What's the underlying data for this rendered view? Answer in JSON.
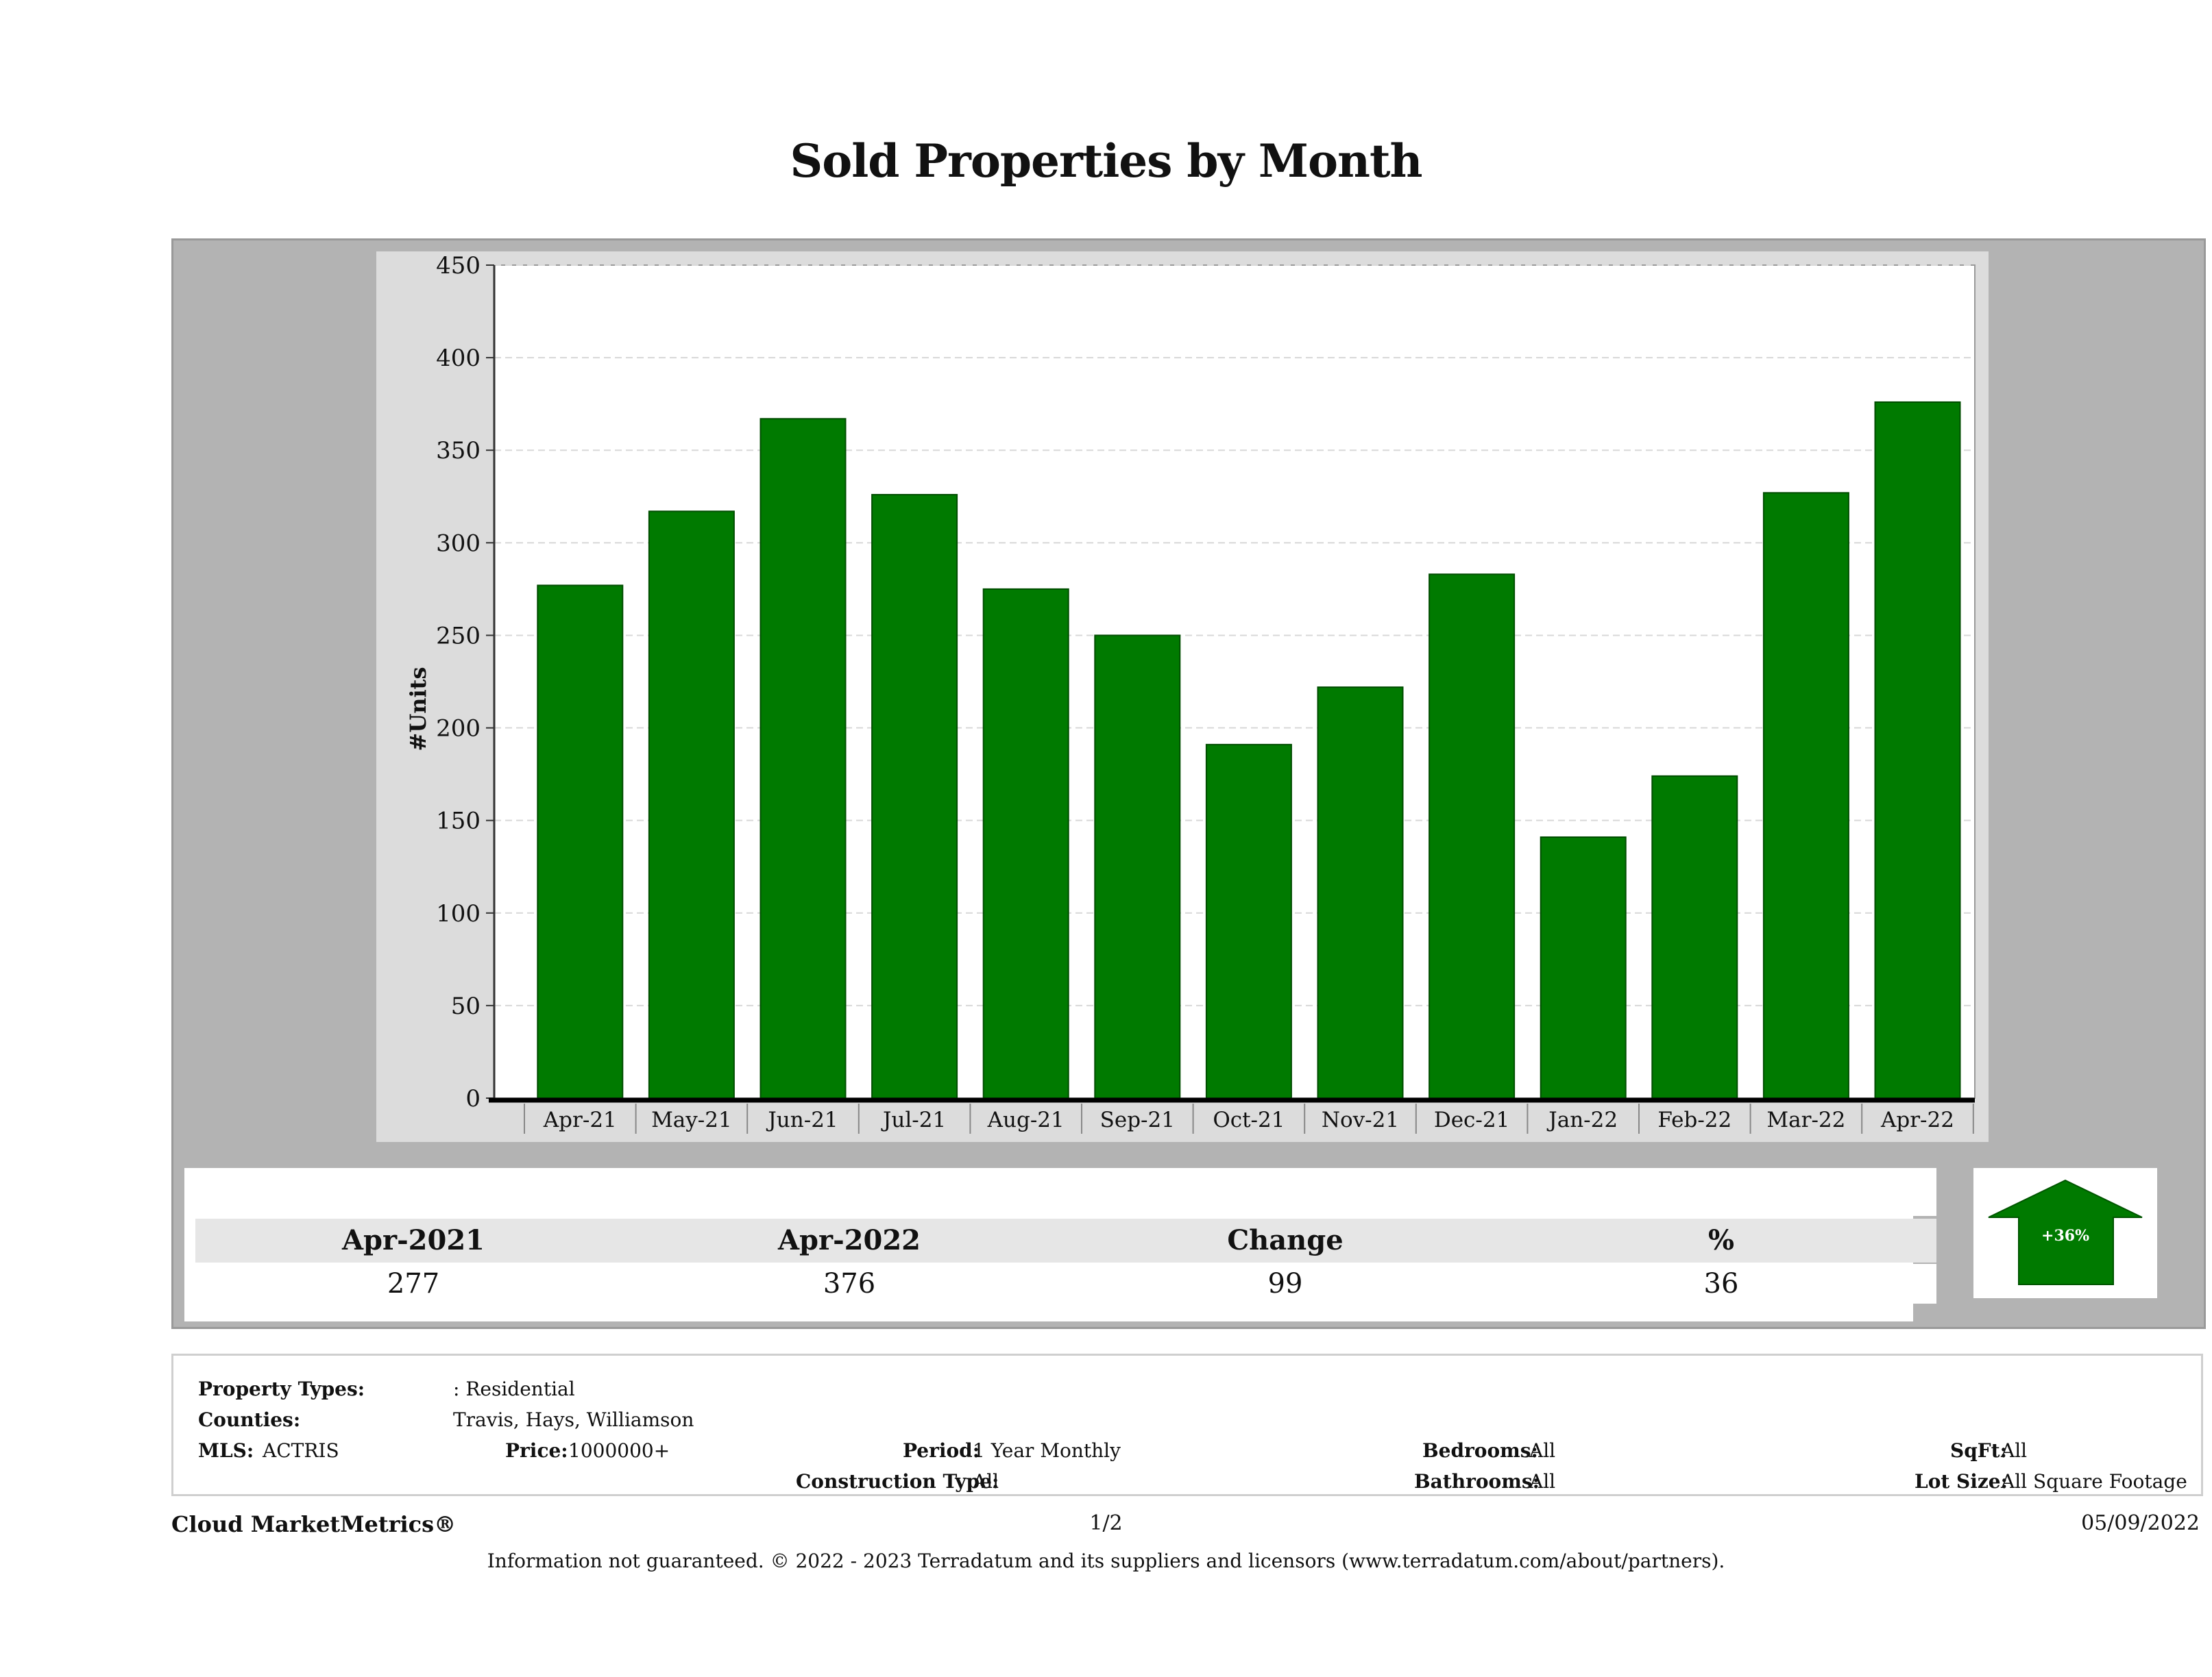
{
  "page": {
    "title": "Sold Properties by Month"
  },
  "chart_data": {
    "type": "bar",
    "title": "Sold Properties by Month",
    "xlabel": "",
    "ylabel": "#Units",
    "ylim": [
      0,
      450
    ],
    "yticks": [
      0,
      50,
      100,
      150,
      200,
      250,
      300,
      350,
      400,
      450
    ],
    "grid": true,
    "bar_color": "#007a00",
    "categories": [
      "Apr-21",
      "May-21",
      "Jun-21",
      "Jul-21",
      "Aug-21",
      "Sep-21",
      "Oct-21",
      "Nov-21",
      "Dec-21",
      "Jan-22",
      "Feb-22",
      "Mar-22",
      "Apr-22"
    ],
    "values": [
      277,
      317,
      367,
      326,
      275,
      250,
      191,
      222,
      283,
      141,
      174,
      327,
      376
    ]
  },
  "summary": {
    "headers": [
      "Apr-2021",
      "Apr-2022",
      "Change",
      "%"
    ],
    "values": [
      "277",
      "376",
      "99",
      "36"
    ],
    "badge": {
      "text": "+36%",
      "direction": "up",
      "color": "#007a00"
    }
  },
  "filters": {
    "property_types_label": "Property Types:",
    "property_types_value": ": Residential",
    "counties_label": "Counties:",
    "counties_value": "Travis, Hays, Williamson",
    "mls_label": "MLS:",
    "mls_value": "ACTRIS",
    "price_label": "Price:",
    "price_value": "1000000+",
    "period_label": "Period:",
    "period_value": "1 Year Monthly",
    "construction_label": "Construction Type:",
    "construction_value": "All",
    "bedrooms_label": "Bedrooms:",
    "bedrooms_value": "All",
    "bathrooms_label": "Bathrooms:",
    "bathrooms_value": "All",
    "sqft_label": "SqFt:",
    "sqft_value": "All",
    "lotsize_label": "Lot Size:",
    "lotsize_value": "All Square Footage"
  },
  "footer": {
    "brand": "Cloud MarketMetrics®",
    "page_number": "1/2",
    "date": "05/09/2022",
    "disclaimer": "Information not guaranteed. © 2022 - 2023 Terradatum and its suppliers and licensors (www.terradatum.com/about/partners)."
  }
}
